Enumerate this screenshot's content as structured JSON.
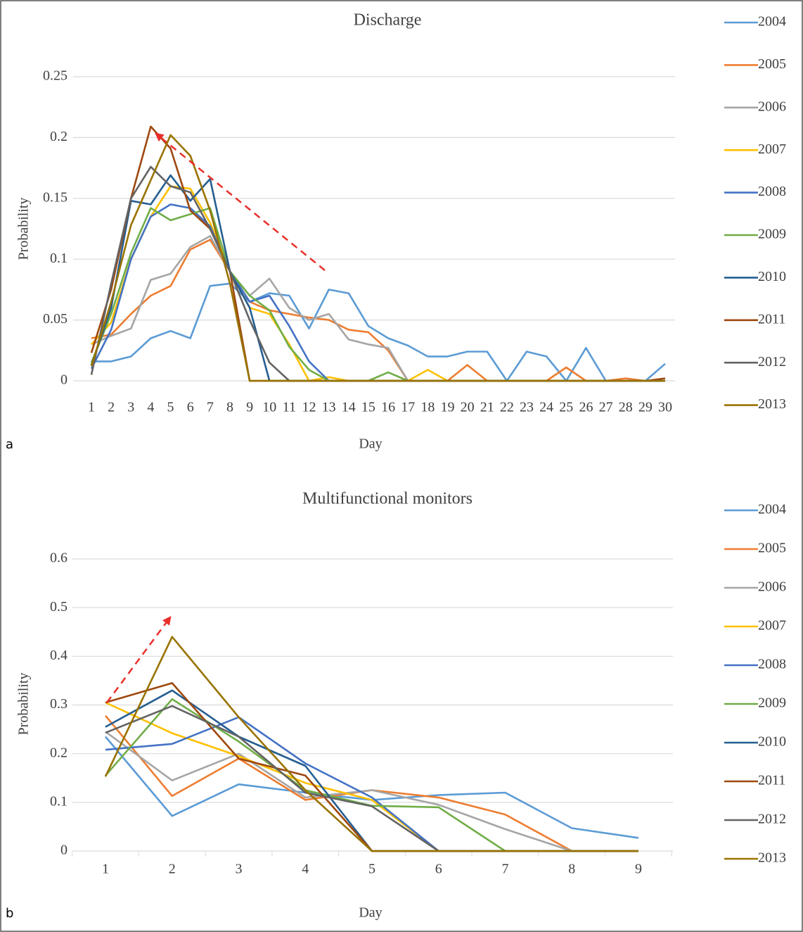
{
  "chart_data": [
    {
      "type": "line",
      "title": "Discharge",
      "x_label": "Day",
      "y_label": "Probability",
      "panel_label": "a",
      "categories": [
        1,
        2,
        3,
        4,
        5,
        6,
        7,
        8,
        9,
        10,
        11,
        12,
        13,
        14,
        15,
        16,
        17,
        18,
        19,
        20,
        21,
        22,
        23,
        24,
        25,
        26,
        27,
        28,
        29,
        30
      ],
      "ylim": [
        0,
        0.25
      ],
      "yticks": [
        0,
        0.05,
        0.1,
        0.15,
        0.2,
        0.25
      ],
      "grid": true,
      "legend": "right",
      "series": [
        {
          "name": "2004",
          "color": "#5b9bd5",
          "values": [
            0.016,
            0.016,
            0.02,
            0.035,
            0.041,
            0.035,
            0.078,
            0.08,
            0.065,
            0.072,
            0.07,
            0.043,
            0.075,
            0.072,
            0.045,
            0.035,
            0.029,
            0.02,
            0.02,
            0.024,
            0.024,
            0,
            0.024,
            0.02,
            0,
            0.027,
            0,
            0,
            0,
            0.014
          ]
        },
        {
          "name": "2005",
          "color": "#ed7d31",
          "values": [
            0.035,
            0.038,
            0.055,
            0.07,
            0.078,
            0.108,
            0.116,
            0.09,
            0.065,
            0.058,
            0.055,
            0.052,
            0.05,
            0.042,
            0.04,
            0.025,
            0,
            0,
            0,
            0.013,
            0,
            0,
            0,
            0,
            0.011,
            0,
            0,
            0.002,
            0,
            0
          ]
        },
        {
          "name": "2006",
          "color": "#a5a5a5",
          "values": [
            0.03,
            0.037,
            0.043,
            0.083,
            0.088,
            0.11,
            0.119,
            0.09,
            0.07,
            0.084,
            0.06,
            0.05,
            0.055,
            0.034,
            0.03,
            0.027,
            0,
            0,
            0,
            0,
            0,
            0,
            0,
            0,
            0,
            0,
            0,
            0,
            0,
            0
          ]
        },
        {
          "name": "2007",
          "color": "#ffc000",
          "values": [
            0.03,
            0.048,
            0.1,
            0.135,
            0.16,
            0.158,
            0.13,
            0.09,
            0.06,
            0.055,
            0.03,
            0,
            0.003,
            0,
            0,
            0,
            0,
            0.009,
            0,
            0,
            0,
            0,
            0,
            0,
            0,
            0,
            0,
            0,
            0,
            0
          ]
        },
        {
          "name": "2008",
          "color": "#4472c4",
          "values": [
            0.01,
            0.042,
            0.1,
            0.135,
            0.145,
            0.142,
            0.127,
            0.09,
            0.065,
            0.07,
            0.045,
            0.016,
            0,
            0,
            0,
            0,
            0,
            0,
            0,
            0,
            0,
            0,
            0,
            0,
            0,
            0,
            0,
            0,
            0,
            0
          ]
        },
        {
          "name": "2009",
          "color": "#70ad47",
          "values": [
            0.015,
            0.055,
            0.105,
            0.142,
            0.132,
            0.137,
            0.142,
            0.09,
            0.07,
            0.058,
            0.028,
            0.009,
            0,
            0,
            0,
            0.007,
            0,
            0,
            0,
            0,
            0,
            0,
            0,
            0,
            0,
            0,
            0,
            0,
            0,
            0
          ]
        },
        {
          "name": "2010",
          "color": "#255e91",
          "values": [
            0.013,
            0.06,
            0.148,
            0.145,
            0.169,
            0.148,
            0.166,
            0.09,
            0.06,
            0,
            0,
            0,
            0,
            0,
            0,
            0,
            0,
            0,
            0,
            0,
            0,
            0,
            0,
            0,
            0,
            0,
            0,
            0,
            0,
            0
          ]
        },
        {
          "name": "2011",
          "color": "#9e480e",
          "values": [
            0.023,
            0.075,
            0.15,
            0.209,
            0.191,
            0.14,
            0.125,
            0.09,
            0,
            0,
            0,
            0,
            0,
            0,
            0,
            0,
            0,
            0,
            0,
            0,
            0,
            0,
            0,
            0,
            0,
            0,
            0,
            0,
            0,
            0.002
          ]
        },
        {
          "name": "2012",
          "color": "#636363",
          "values": [
            0.005,
            0.08,
            0.15,
            0.176,
            0.16,
            0.155,
            0.125,
            0.09,
            0.05,
            0.015,
            0,
            0,
            0,
            0,
            0,
            0,
            0,
            0,
            0,
            0,
            0,
            0,
            0,
            0,
            0,
            0,
            0,
            0,
            0,
            0
          ]
        },
        {
          "name": "2013",
          "color": "#997300",
          "values": [
            0.012,
            0.065,
            0.128,
            0.165,
            0.202,
            0.185,
            0.14,
            0.08,
            0,
            0,
            0,
            0,
            0,
            0,
            0,
            0,
            0,
            0,
            0,
            0,
            0,
            0,
            0,
            0,
            0,
            0,
            0,
            0,
            0,
            0
          ]
        }
      ]
    },
    {
      "type": "line",
      "title": "Multifunctional monitors",
      "x_label": "Day",
      "y_label": "Probability",
      "panel_label": "b",
      "categories": [
        1,
        2,
        3,
        4,
        5,
        6,
        7,
        8,
        9
      ],
      "ylim": [
        0,
        0.6
      ],
      "yticks": [
        0,
        0.1,
        0.2,
        0.3,
        0.4,
        0.5,
        0.6
      ],
      "grid": true,
      "legend": "right",
      "series": [
        {
          "name": "2004",
          "color": "#5b9bd5",
          "values": [
            0.235,
            0.072,
            0.137,
            0.12,
            0.105,
            0.115,
            0.12,
            0.047,
            0.027
          ]
        },
        {
          "name": "2005",
          "color": "#ed7d31",
          "values": [
            0.278,
            0.113,
            0.19,
            0.105,
            0.125,
            0.11,
            0.075,
            0,
            0
          ]
        },
        {
          "name": "2006",
          "color": "#a5a5a5",
          "values": [
            0.245,
            0.145,
            0.2,
            0.11,
            0.125,
            0.095,
            0.045,
            0,
            0
          ]
        },
        {
          "name": "2007",
          "color": "#ffc000",
          "values": [
            0.305,
            0.242,
            0.195,
            0.14,
            0.105,
            0,
            0,
            0,
            0
          ]
        },
        {
          "name": "2008",
          "color": "#4472c4",
          "values": [
            0.208,
            0.22,
            0.275,
            0.18,
            0.11,
            0,
            0,
            0,
            0
          ]
        },
        {
          "name": "2009",
          "color": "#70ad47",
          "values": [
            0.155,
            0.312,
            0.225,
            0.125,
            0.093,
            0.09,
            0,
            0,
            0
          ]
        },
        {
          "name": "2010",
          "color": "#255e91",
          "values": [
            0.255,
            0.33,
            0.235,
            0.175,
            0,
            0,
            0,
            0,
            0
          ]
        },
        {
          "name": "2011",
          "color": "#9e480e",
          "values": [
            0.305,
            0.345,
            0.19,
            0.155,
            0,
            0,
            0,
            0,
            0
          ]
        },
        {
          "name": "2012",
          "color": "#636363",
          "values": [
            0.243,
            0.298,
            0.235,
            0.12,
            0.092,
            0,
            0,
            0,
            0
          ]
        },
        {
          "name": "2013",
          "color": "#997300",
          "values": [
            0.153,
            0.44,
            0.275,
            0.125,
            0,
            0,
            0,
            0,
            0
          ]
        }
      ]
    }
  ]
}
